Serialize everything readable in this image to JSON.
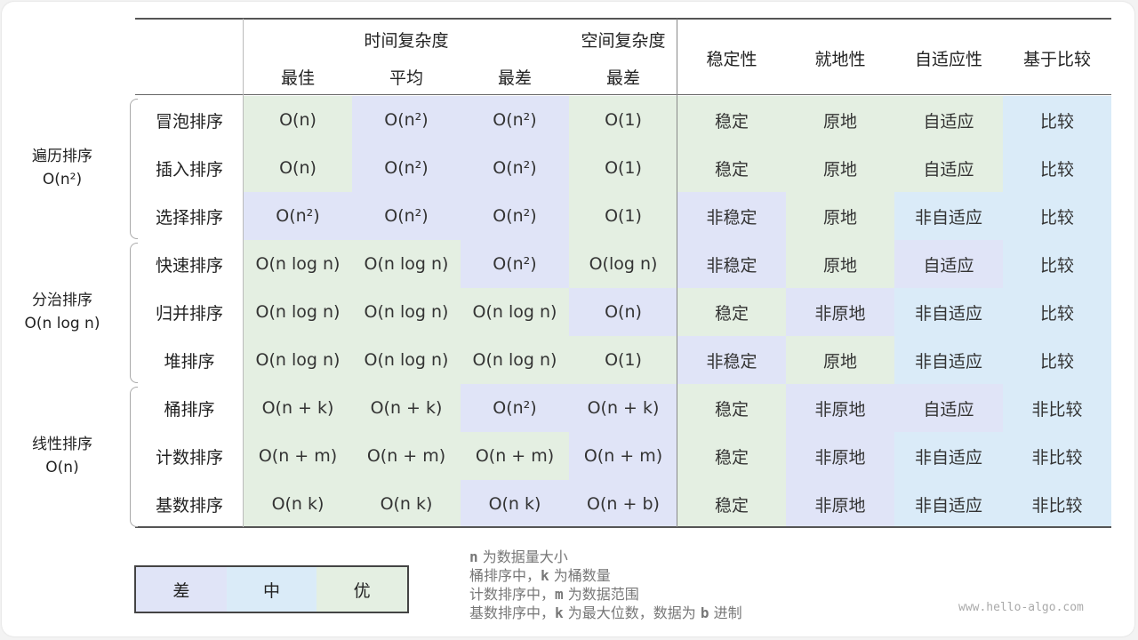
{
  "colors": {
    "good": "#e4efe2",
    "mid": "#daebf8",
    "bad": "#e0e4f7"
  },
  "header": {
    "time_complexity": "时间复杂度",
    "space_complexity": "空间复杂度",
    "best": "最佳",
    "average": "平均",
    "worst": "最差",
    "space_worst": "最差",
    "stability": "稳定性",
    "in_place": "就地性",
    "adaptive": "自适应性",
    "comparison": "基于比较"
  },
  "groups": [
    {
      "name": "遍历排序",
      "complexity": "O(n²)"
    },
    {
      "name": "分治排序",
      "complexity": "O(n log n)"
    },
    {
      "name": "线性排序",
      "complexity": "O(n)"
    }
  ],
  "rows": [
    {
      "name": "冒泡排序",
      "cells": [
        "O(n)",
        "O(n²)",
        "O(n²)",
        "O(1)",
        "稳定",
        "原地",
        "自适应",
        "比较"
      ],
      "quality": [
        "good",
        "bad",
        "bad",
        "good",
        "good",
        "good",
        "good",
        "mid"
      ]
    },
    {
      "name": "插入排序",
      "cells": [
        "O(n)",
        "O(n²)",
        "O(n²)",
        "O(1)",
        "稳定",
        "原地",
        "自适应",
        "比较"
      ],
      "quality": [
        "good",
        "bad",
        "bad",
        "good",
        "good",
        "good",
        "good",
        "mid"
      ]
    },
    {
      "name": "选择排序",
      "cells": [
        "O(n²)",
        "O(n²)",
        "O(n²)",
        "O(1)",
        "非稳定",
        "原地",
        "非自适应",
        "比较"
      ],
      "quality": [
        "bad",
        "bad",
        "bad",
        "good",
        "bad",
        "good",
        "mid",
        "mid"
      ]
    },
    {
      "name": "快速排序",
      "cells": [
        "O(n log n)",
        "O(n log n)",
        "O(n²)",
        "O(log n)",
        "非稳定",
        "原地",
        "自适应",
        "比较"
      ],
      "quality": [
        "good",
        "good",
        "bad",
        "good",
        "bad",
        "good",
        "bad",
        "mid"
      ]
    },
    {
      "name": "归并排序",
      "cells": [
        "O(n log n)",
        "O(n log n)",
        "O(n log n)",
        "O(n)",
        "稳定",
        "非原地",
        "非自适应",
        "比较"
      ],
      "quality": [
        "good",
        "good",
        "good",
        "bad",
        "good",
        "bad",
        "mid",
        "mid"
      ]
    },
    {
      "name": "堆排序",
      "cells": [
        "O(n log n)",
        "O(n log n)",
        "O(n log n)",
        "O(1)",
        "非稳定",
        "原地",
        "非自适应",
        "比较"
      ],
      "quality": [
        "good",
        "good",
        "good",
        "good",
        "bad",
        "good",
        "mid",
        "mid"
      ]
    },
    {
      "name": "桶排序",
      "cells": [
        "O(n + k)",
        "O(n + k)",
        "O(n²)",
        "O(n + k)",
        "稳定",
        "非原地",
        "自适应",
        "非比较"
      ],
      "quality": [
        "good",
        "good",
        "bad",
        "bad",
        "good",
        "bad",
        "bad",
        "mid"
      ]
    },
    {
      "name": "计数排序",
      "cells": [
        "O(n + m)",
        "O(n + m)",
        "O(n + m)",
        "O(n + m)",
        "稳定",
        "非原地",
        "非自适应",
        "非比较"
      ],
      "quality": [
        "good",
        "good",
        "good",
        "bad",
        "good",
        "bad",
        "mid",
        "mid"
      ]
    },
    {
      "name": "基数排序",
      "cells": [
        "O(n k)",
        "O(n k)",
        "O(n k)",
        "O(n + b)",
        "稳定",
        "非原地",
        "非自适应",
        "非比较"
      ],
      "quality": [
        "good",
        "good",
        "bad",
        "bad",
        "good",
        "bad",
        "mid",
        "mid"
      ]
    }
  ],
  "legend": {
    "bad": "差",
    "mid": "中",
    "good": "优"
  },
  "notes": [
    {
      "var": "n",
      "pre": "",
      "post": " 为数据量大小"
    },
    {
      "var": "k",
      "pre": "桶排序中，",
      "post": " 为桶数量"
    },
    {
      "var": "m",
      "pre": "计数排序中，",
      "post": " 为数据范围"
    },
    {
      "var": "k",
      "pre": "基数排序中，",
      "post": " 为最大位数，数据为 ",
      "var2": "b",
      "post2": " 进制"
    }
  ],
  "watermark": "www.hello-algo.com"
}
